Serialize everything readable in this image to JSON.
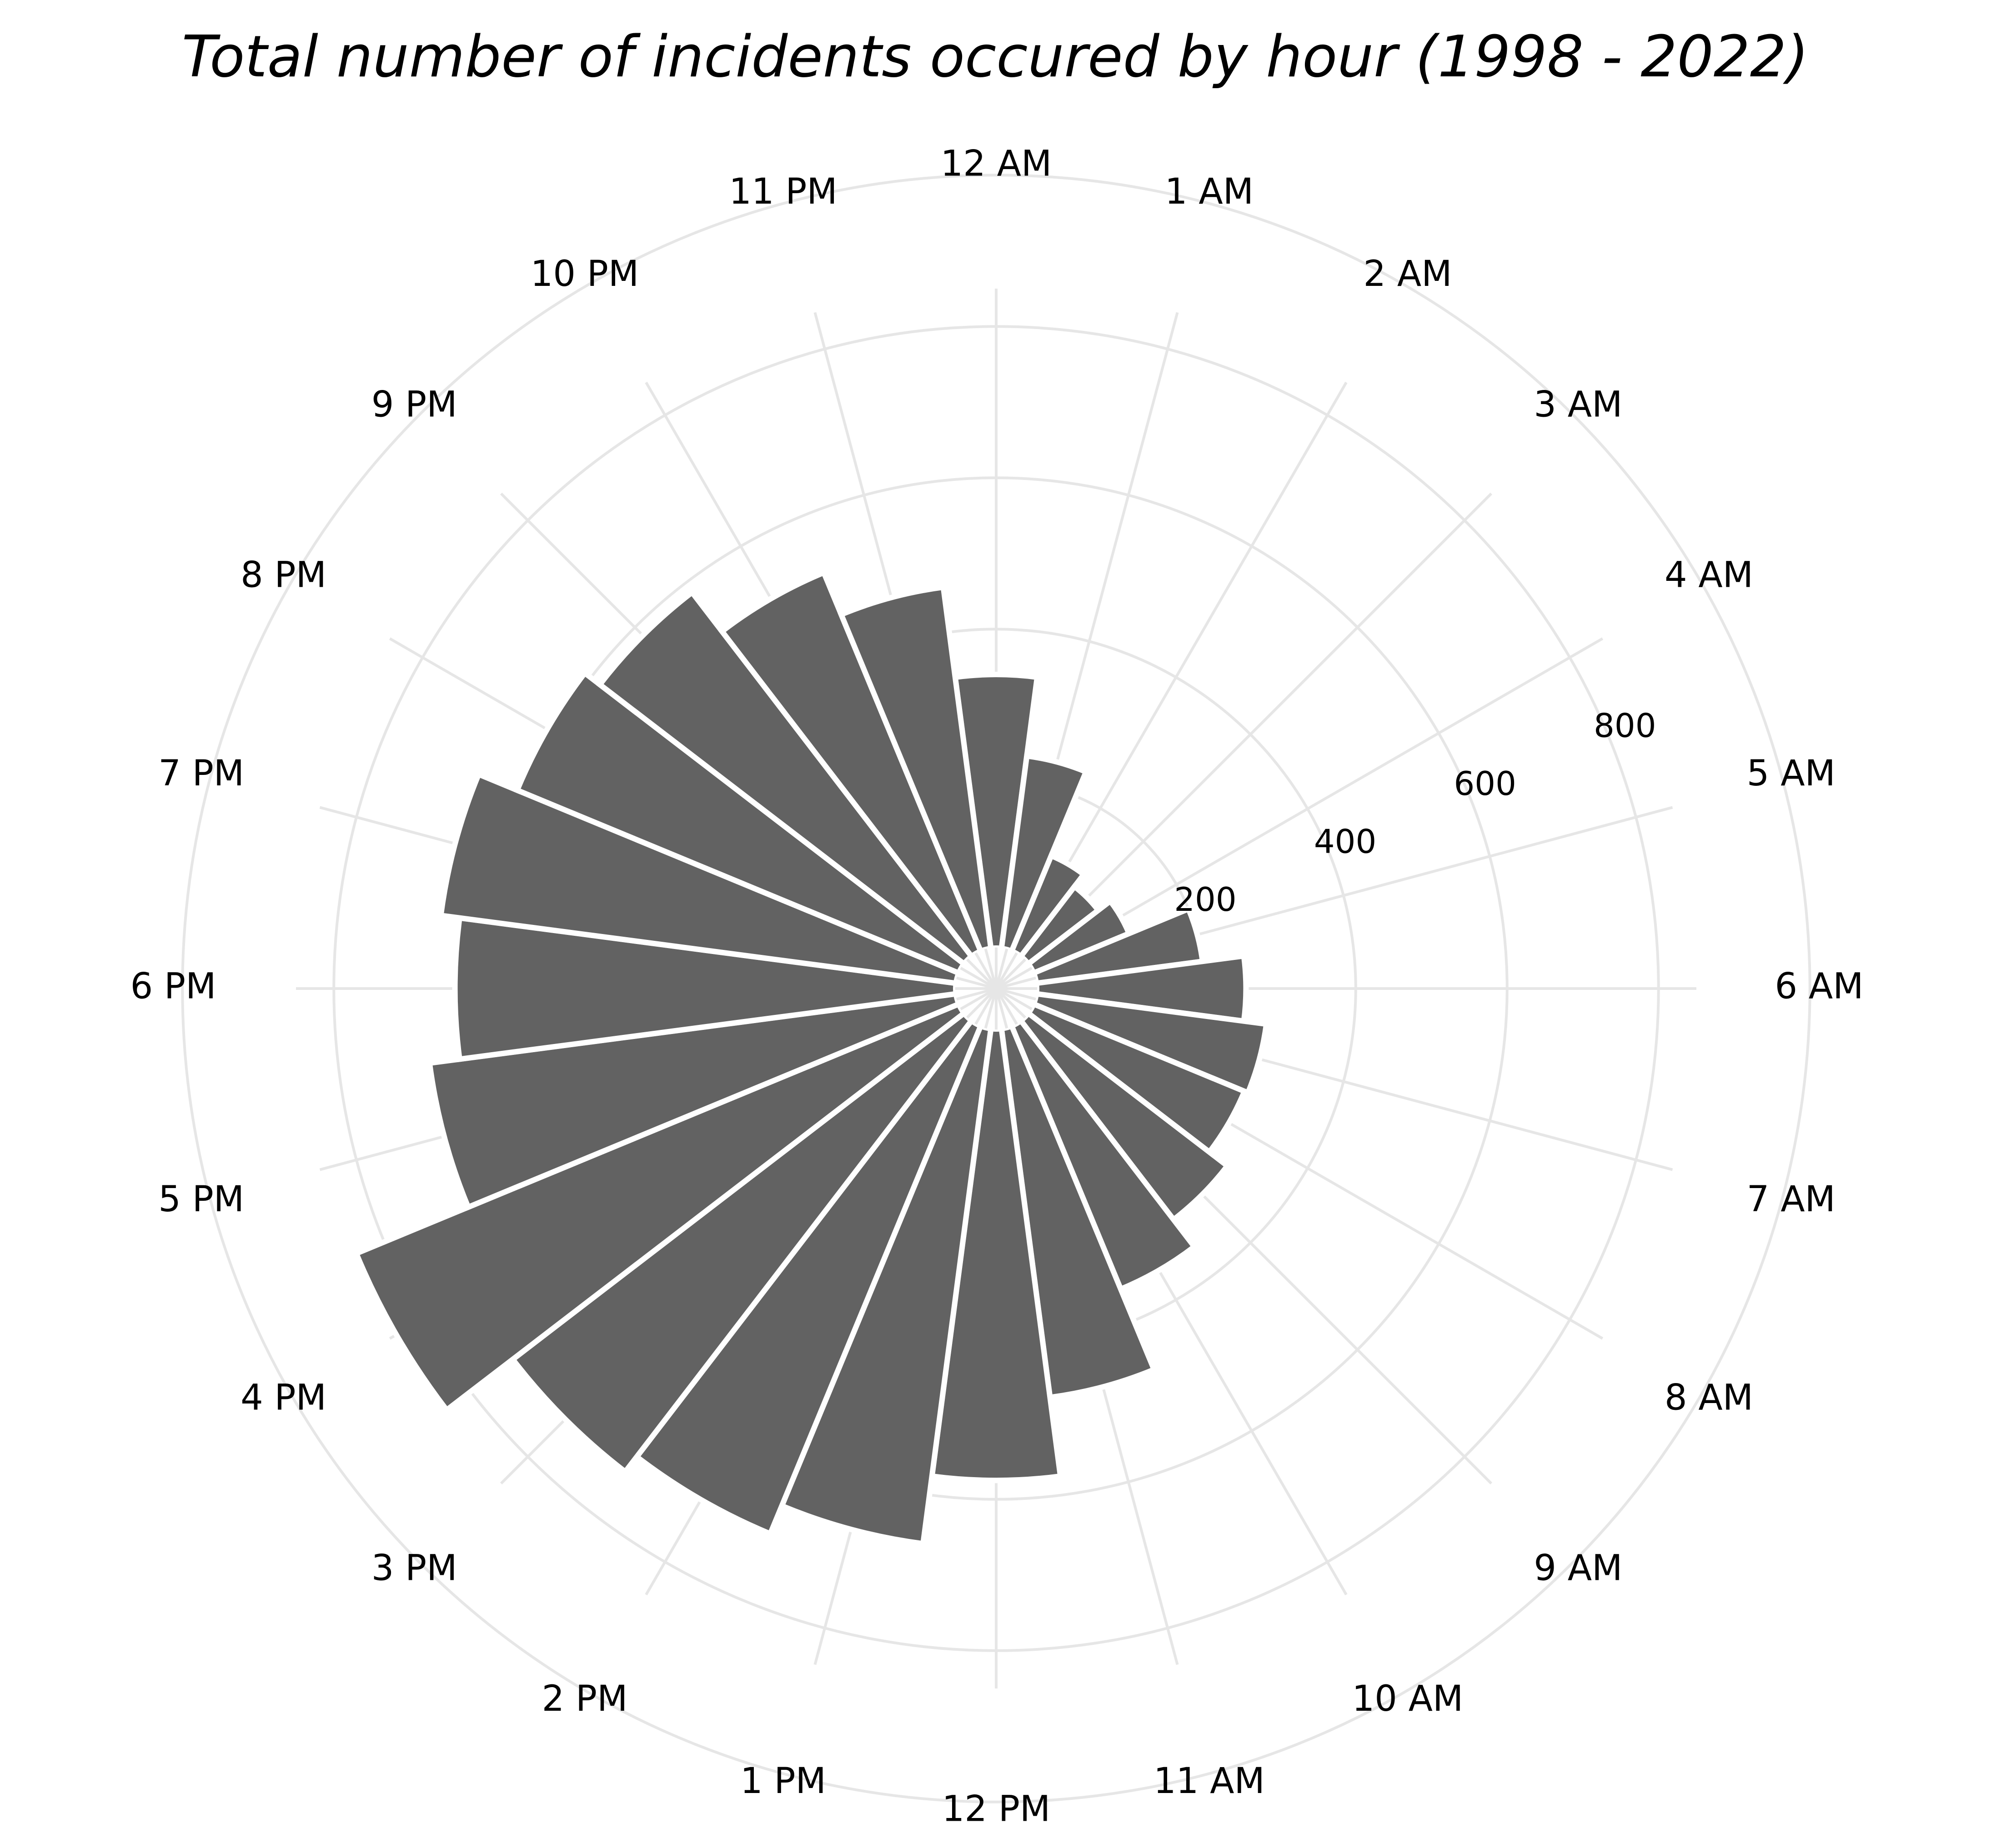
{
  "chart_data": {
    "type": "bar",
    "projection": "polar",
    "title": "Total number of incidents occured by hour (1998 - 2022)",
    "categories": [
      "12 AM",
      "1 AM",
      "2 AM",
      "3 AM",
      "4 AM",
      "5 AM",
      "6 AM",
      "7 AM",
      "8 AM",
      "9 AM",
      "10 AM",
      "11 AM",
      "12 PM",
      "1 PM",
      "2 PM",
      "3 PM",
      "4 PM",
      "5 PM",
      "6 PM",
      "7 PM",
      "8 PM",
      "9 PM",
      "10 PM",
      "11 PM"
    ],
    "values": [
      340,
      235,
      115,
      95,
      115,
      200,
      255,
      285,
      280,
      310,
      355,
      470,
      575,
      665,
      705,
      730,
      840,
      680,
      640,
      665,
      610,
      585,
      520,
      460
    ],
    "radial_ticks": [
      "200",
      "400",
      "600",
      "800"
    ],
    "radial_tick_values": [
      200,
      400,
      600,
      800
    ],
    "rlim": [
      -75,
      850
    ],
    "grid": true,
    "bar_color": "#626262",
    "grid_color": "#e6e6e6",
    "xlabel": "",
    "ylabel": ""
  }
}
